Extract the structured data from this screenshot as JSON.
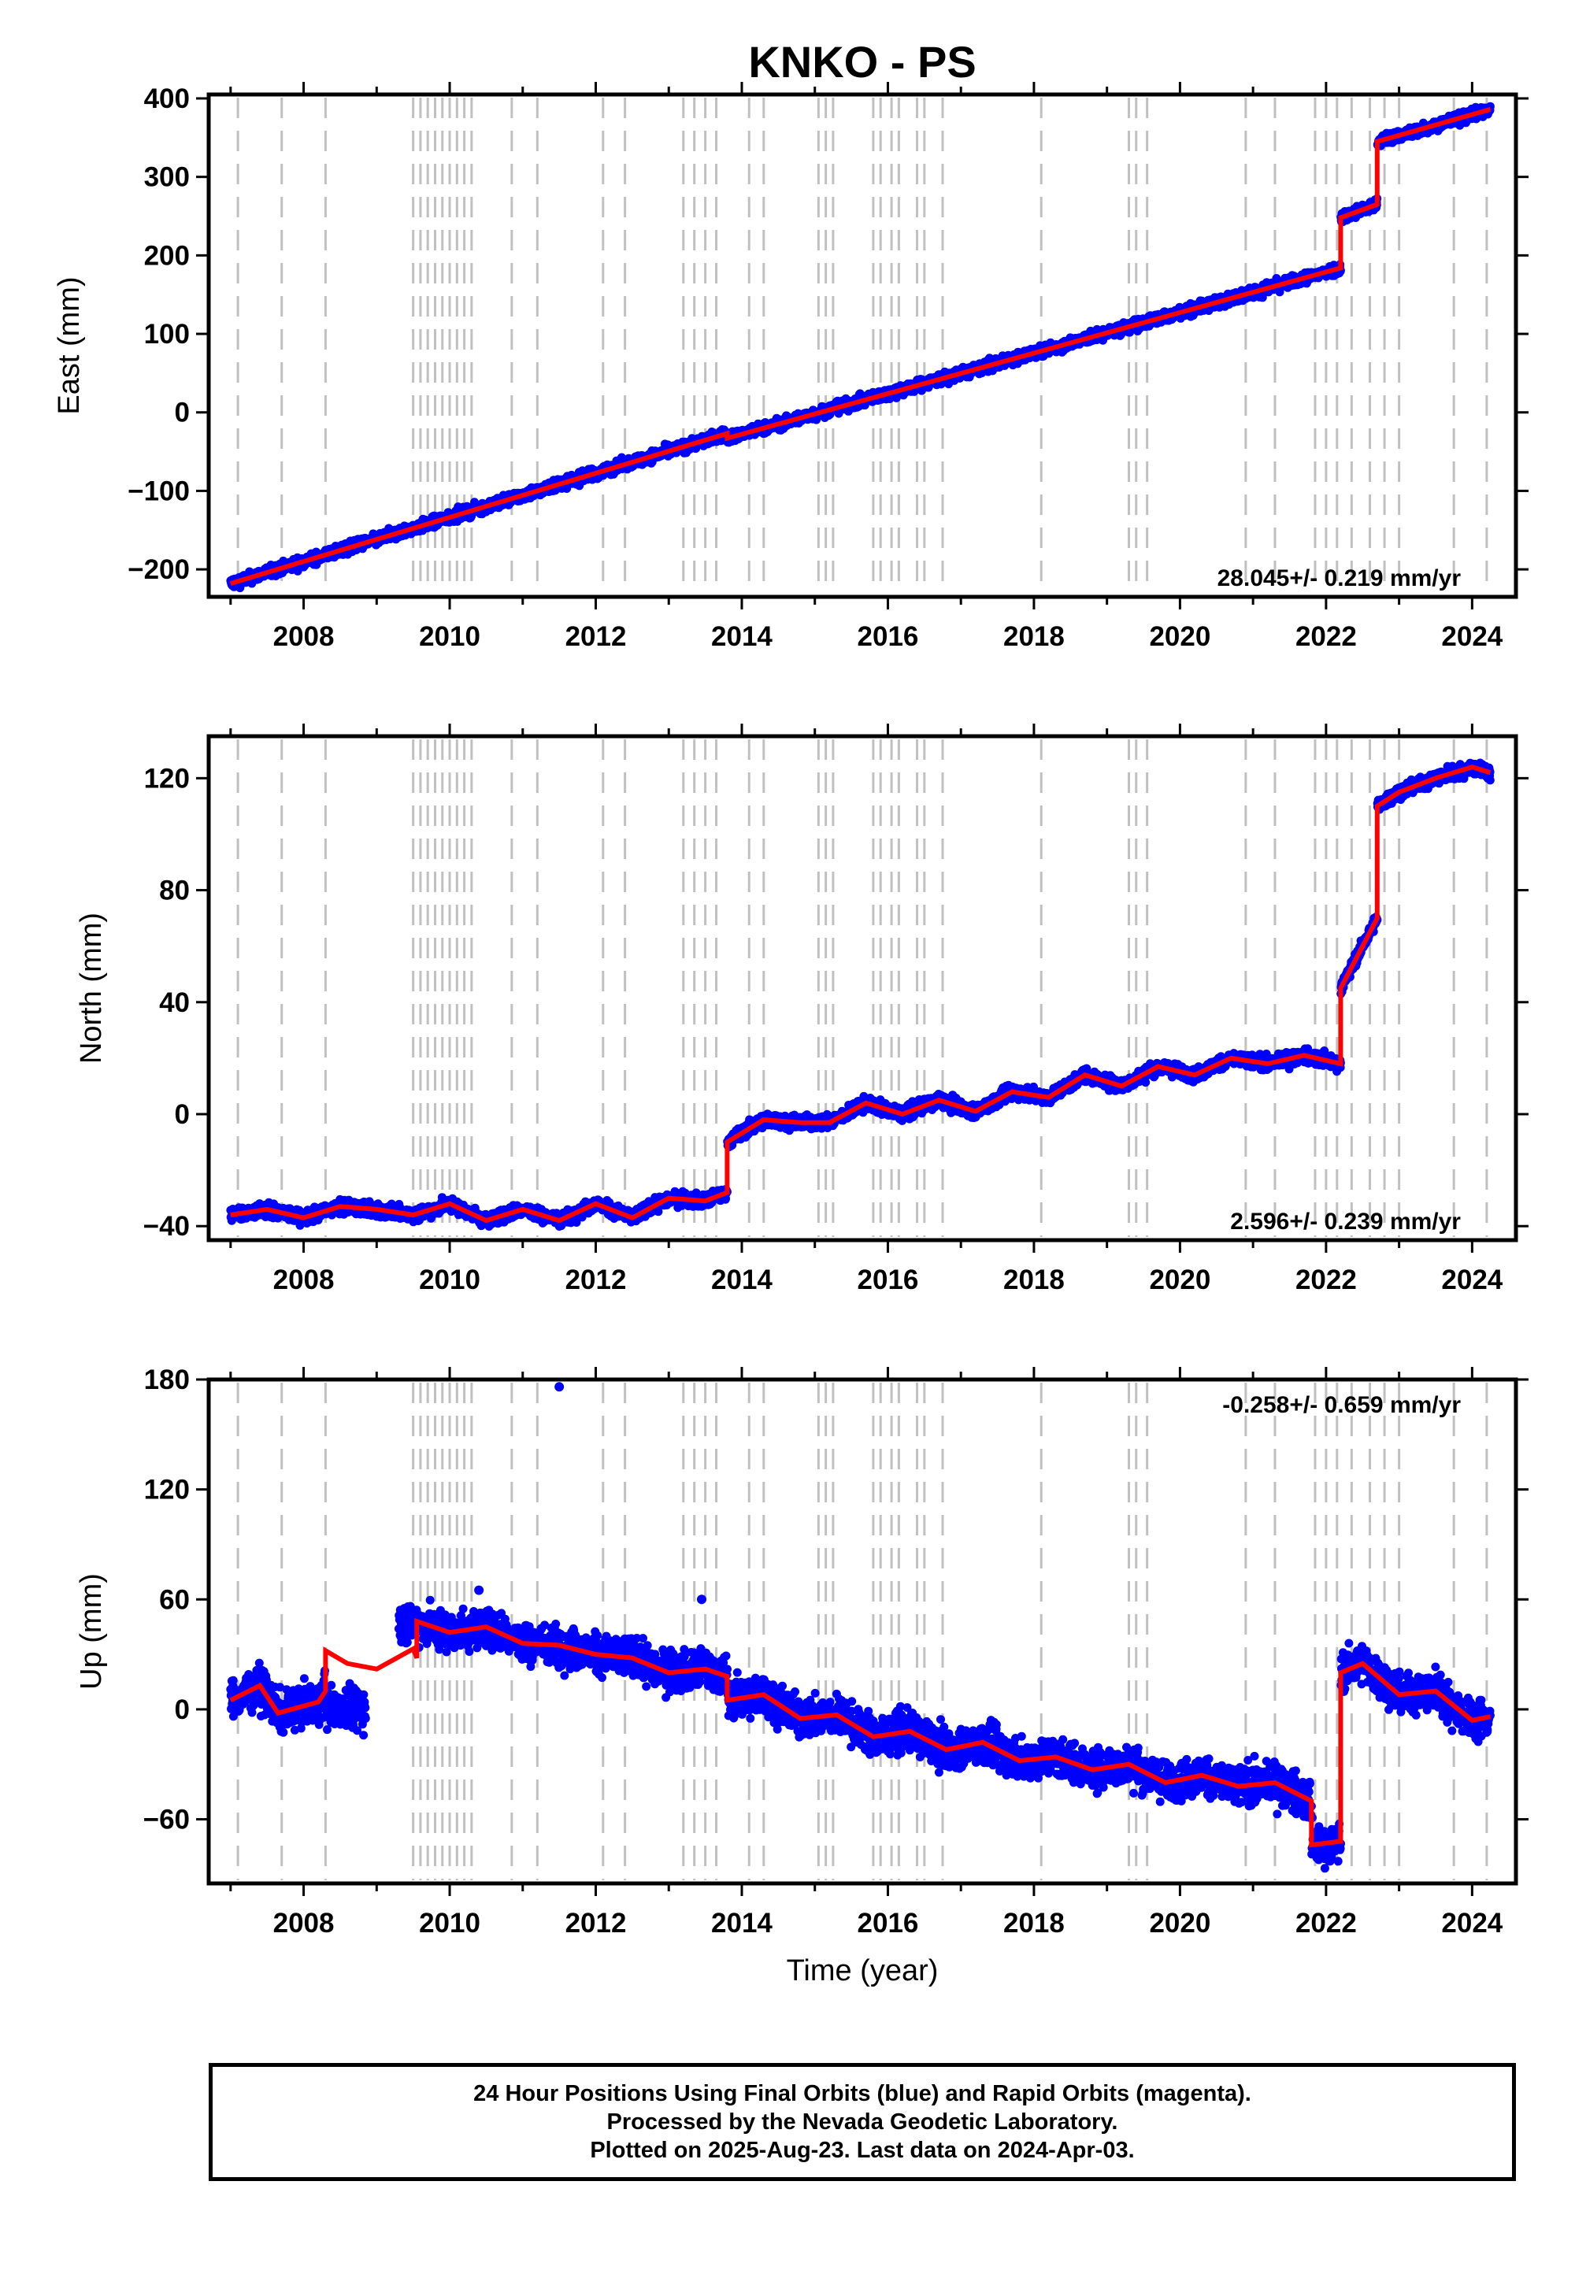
{
  "title": "KNKO - PS",
  "footer": {
    "line1": "24 Hour Positions Using Final Orbits (blue) and Rapid Orbits (magenta).",
    "line2": "Processed by the Nevada Geodetic Laboratory.",
    "line3": "Plotted on 2025-Aug-23. Last data on 2024-Apr-03."
  },
  "colors": {
    "data_points": "#0000ff",
    "model_line": "#ff0000",
    "event_lines": "#c0c0c0",
    "frame": "#000000"
  },
  "chart_data": [
    {
      "type": "scatter",
      "ylabel": "East (mm)",
      "xlabel": "",
      "xlim": [
        2006.7,
        2024.6
      ],
      "ylim": [
        -235,
        405
      ],
      "yticks": [
        -200,
        -100,
        0,
        100,
        200,
        300,
        400
      ],
      "ytick_labels": [
        "−200",
        "−100",
        "0",
        "100",
        "200",
        "300",
        "400"
      ],
      "xticks": [
        2008,
        2010,
        2012,
        2014,
        2016,
        2018,
        2020,
        2022,
        2024
      ],
      "xtick_labels": [
        "2008",
        "2010",
        "2012",
        "2014",
        "2016",
        "2018",
        "2020",
        "2022",
        "2024"
      ],
      "rate_label": "28.045+/- 0.219 mm/yr",
      "rate_position": "bottom-right",
      "grid": false,
      "series": [
        {
          "role": "model",
          "x": [
            2007.0,
            2013.8,
            2013.8,
            2022.2,
            2022.2,
            2022.7,
            2022.7,
            2024.25
          ],
          "y": [
            -218,
            -27,
            -33,
            184,
            248,
            265,
            345,
            386
          ]
        },
        {
          "role": "points",
          "x": [
            2007.0,
            2024.25
          ],
          "y": [
            -218,
            386
          ]
        }
      ],
      "offsets": [
        [
          2013.8,
          -6
        ],
        [
          2022.2,
          64
        ],
        [
          2022.7,
          80
        ]
      ],
      "scatter": 6
    },
    {
      "type": "scatter",
      "ylabel": "North (mm)",
      "xlabel": "",
      "xlim": [
        2006.7,
        2024.6
      ],
      "ylim": [
        -45,
        135
      ],
      "yticks": [
        -40,
        0,
        40,
        80,
        120
      ],
      "ytick_labels": [
        "−40",
        "0",
        "40",
        "80",
        "120"
      ],
      "xticks": [
        2008,
        2010,
        2012,
        2014,
        2016,
        2018,
        2020,
        2022,
        2024
      ],
      "xtick_labels": [
        "2008",
        "2010",
        "2012",
        "2014",
        "2016",
        "2018",
        "2020",
        "2022",
        "2024"
      ],
      "rate_label": "2.596+/- 0.239 mm/yr",
      "rate_position": "bottom-right",
      "grid": false,
      "series": [
        {
          "role": "model",
          "x": [
            2007.0,
            2007.5,
            2008.0,
            2008.5,
            2009.0,
            2009.5,
            2010.0,
            2010.5,
            2011.0,
            2011.5,
            2012.0,
            2012.5,
            2013.0,
            2013.5,
            2013.8,
            2013.8,
            2014.3,
            2014.8,
            2015.2,
            2015.7,
            2016.2,
            2016.7,
            2017.2,
            2017.7,
            2018.2,
            2018.7,
            2019.2,
            2019.7,
            2020.2,
            2020.7,
            2021.2,
            2021.7,
            2022.2,
            2022.2,
            2022.5,
            2022.7,
            2022.7,
            2023.0,
            2023.5,
            2024.0,
            2024.25
          ],
          "y": [
            -36,
            -34,
            -37,
            -33,
            -34,
            -36,
            -32,
            -38,
            -34,
            -38,
            -32,
            -37,
            -30,
            -31,
            -28,
            -10,
            -2,
            -3,
            -3,
            4,
            0,
            5,
            1,
            8,
            6,
            14,
            10,
            17,
            14,
            20,
            18,
            21,
            18,
            45,
            60,
            70,
            110,
            115,
            120,
            124,
            122
          ]
        },
        {
          "role": "points",
          "x": [
            2007.0,
            2024.25
          ],
          "y": [
            -36,
            122
          ]
        }
      ],
      "scatter": 2
    },
    {
      "type": "scatter",
      "ylabel": "Up (mm)",
      "xlabel": "Time (year)",
      "xlim": [
        2006.7,
        2024.6
      ],
      "ylim": [
        -95,
        180
      ],
      "yticks": [
        -60,
        0,
        60,
        120,
        180
      ],
      "ytick_labels": [
        "−60",
        "0",
        "60",
        "120",
        "180"
      ],
      "xticks": [
        2008,
        2010,
        2012,
        2014,
        2016,
        2018,
        2020,
        2022,
        2024
      ],
      "xtick_labels": [
        "2008",
        "2010",
        "2012",
        "2014",
        "2016",
        "2018",
        "2020",
        "2022",
        "2024"
      ],
      "rate_label": "-0.258+/- 0.659 mm/yr",
      "rate_position": "top-right",
      "grid": false,
      "series": [
        {
          "role": "model",
          "x": [
            2007.0,
            2007.4,
            2007.65,
            2008.2,
            2008.3,
            2008.3,
            2008.6,
            2009.0,
            2009.5,
            2009.55,
            2009.55,
            2010.0,
            2010.5,
            2011.0,
            2011.5,
            2012.0,
            2012.5,
            2013.0,
            2013.5,
            2013.8,
            2013.8,
            2014.3,
            2014.8,
            2015.3,
            2015.8,
            2016.3,
            2016.8,
            2017.3,
            2017.8,
            2018.3,
            2018.8,
            2019.3,
            2019.8,
            2020.3,
            2020.8,
            2021.3,
            2021.8,
            2021.8,
            2022.2,
            2022.2,
            2022.5,
            2023.0,
            2023.5,
            2024.0,
            2024.25
          ],
          "y": [
            5,
            13,
            -2,
            4,
            10,
            32,
            25,
            22,
            33,
            28,
            48,
            42,
            45,
            36,
            35,
            30,
            28,
            20,
            22,
            18,
            5,
            8,
            -5,
            -3,
            -15,
            -12,
            -22,
            -18,
            -28,
            -26,
            -33,
            -30,
            -40,
            -36,
            -42,
            -40,
            -50,
            -74,
            -72,
            20,
            25,
            8,
            10,
            -6,
            -4
          ]
        },
        {
          "role": "points",
          "x": [
            2007.0,
            2008.8,
            2008.8,
            2024.25
          ],
          "y": [
            5,
            -10,
            55,
            -4
          ]
        }
      ],
      "outliers": [
        [
          2011.5,
          176
        ],
        [
          2013.45,
          60
        ],
        [
          2010.4,
          65
        ]
      ],
      "scatter": 9
    }
  ],
  "event_lines_x": [
    2007.1,
    2007.7,
    2008.3,
    2009.5,
    2009.6,
    2009.7,
    2009.8,
    2009.9,
    2010.0,
    2010.1,
    2010.2,
    2010.3,
    2010.85,
    2011.2,
    2012.1,
    2012.4,
    2013.2,
    2013.35,
    2013.5,
    2013.65,
    2014.1,
    2014.3,
    2015.05,
    2015.15,
    2015.25,
    2015.8,
    2015.9,
    2016.05,
    2016.15,
    2016.4,
    2016.5,
    2016.75,
    2018.1,
    2019.3,
    2019.4,
    2019.55,
    2020.9,
    2021.3,
    2021.85,
    2022.0,
    2022.15,
    2022.35,
    2022.6,
    2022.8,
    2023.0,
    2023.75,
    2024.2
  ]
}
